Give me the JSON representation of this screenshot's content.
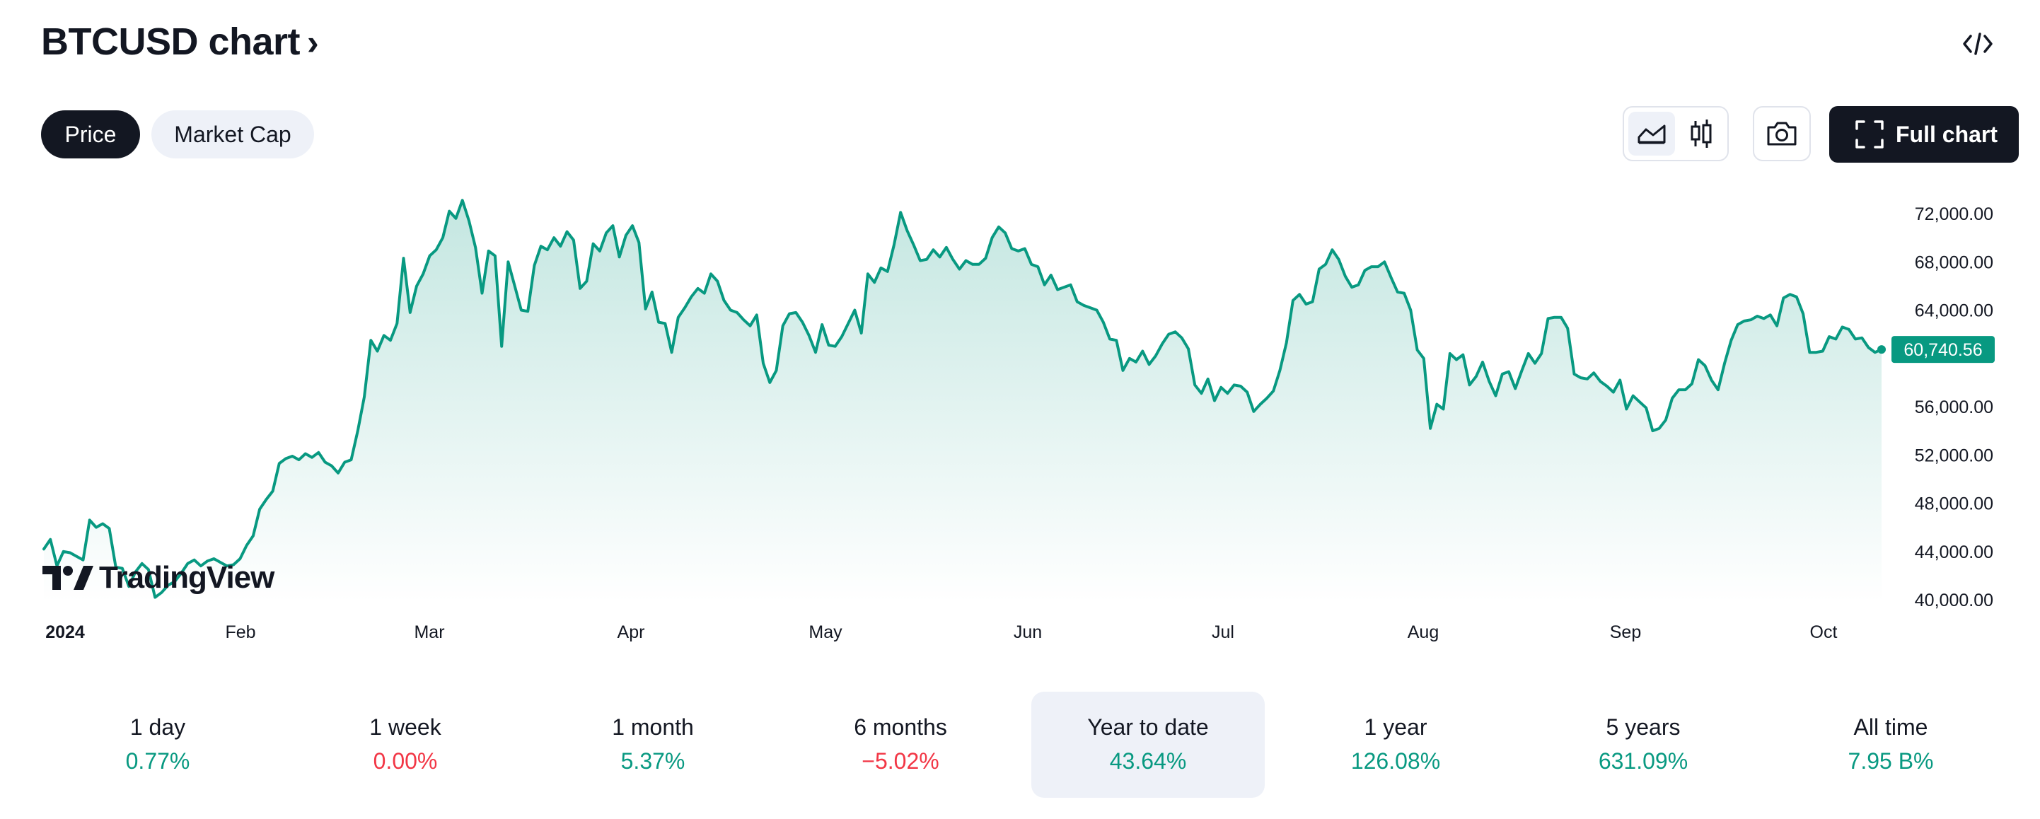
{
  "header": {
    "title": "BTCUSD chart",
    "title_chevron": "›",
    "embed_icon": "code-brackets-icon"
  },
  "tabs": [
    {
      "label": "Price",
      "active": true
    },
    {
      "label": "Market Cap",
      "active": false
    }
  ],
  "toolbar": {
    "line_icon": "area-chart-icon",
    "candle_icon": "candlestick-icon",
    "camera_icon": "camera-icon",
    "full_chart_label": "Full chart",
    "full_chart_icon": "fullscreen-icon"
  },
  "watermark": "TradingView",
  "colors": {
    "line": "#089981",
    "fill_top": "rgba(8,153,129,0.22)",
    "badge": "#089981",
    "positive": "#089981",
    "negative": "#f23645"
  },
  "chart_data": {
    "type": "area",
    "title": "",
    "xlabel": "",
    "ylabel": "",
    "x_ticks": [
      "2024",
      "Feb",
      "Mar",
      "Apr",
      "May",
      "Jun",
      "Jul",
      "Aug",
      "Sep",
      "Oct"
    ],
    "y_ticks": [
      "72,000.00",
      "68,000.00",
      "64,000.00",
      "56,000.00",
      "52,000.00",
      "48,000.00",
      "44,000.00",
      "40,000.00"
    ],
    "y_range": [
      40000,
      72000
    ],
    "last_value_label": "60,740.56",
    "last_value": 60740.56,
    "series": [
      {
        "values": [
          44200,
          45000,
          42800,
          44000,
          43900,
          43600,
          43300,
          46600,
          46000,
          46300,
          45900,
          42700,
          42600,
          41100,
          42300,
          43000,
          42500,
          40200,
          40600,
          41200,
          41500,
          42200,
          43000,
          43300,
          42800,
          43200,
          43400,
          43100,
          42800,
          42900,
          43400,
          44500,
          45300,
          47500,
          48300,
          49000,
          51300,
          51700,
          51900,
          51600,
          52100,
          51800,
          52200,
          51400,
          51100,
          50500,
          51400,
          51600,
          54000,
          56800,
          61500,
          60600,
          61900,
          61500,
          62900,
          68300,
          63800,
          66000,
          67000,
          68500,
          69000,
          70000,
          72200,
          71600,
          73100,
          71400,
          69200,
          65400,
          68900,
          68500,
          61000,
          68000,
          66000,
          64000,
          63900,
          67700,
          69300,
          69000,
          70000,
          69300,
          70500,
          69800,
          65800,
          66400,
          69500,
          68900,
          70400,
          71000,
          68400,
          70200,
          71000,
          69600,
          64100,
          65500,
          63000,
          62900,
          60500,
          63400,
          64200,
          65100,
          65800,
          65400,
          67000,
          66400,
          64800,
          64000,
          63800,
          63200,
          62700,
          63600,
          59600,
          58000,
          59000,
          62700,
          63700,
          63800,
          63000,
          61900,
          60500,
          62800,
          61100,
          61000,
          61800,
          62900,
          64000,
          62100,
          67000,
          66300,
          67500,
          67200,
          69400,
          72100,
          70600,
          69400,
          68100,
          68200,
          69000,
          68400,
          69200,
          68200,
          67400,
          68100,
          67800,
          67800,
          68300,
          70000,
          70900,
          70400,
          69100,
          68900,
          69100,
          67800,
          67600,
          66100,
          66900,
          65700,
          65900,
          66100,
          64700,
          64400,
          64200,
          64000,
          63000,
          61600,
          61500,
          59000,
          60000,
          59700,
          60600,
          59500,
          60200,
          61200,
          62000,
          62200,
          61700,
          60800,
          57800,
          57100,
          58300,
          56500,
          57600,
          57100,
          57800,
          57700,
          57200,
          55600,
          56200,
          56700,
          57300,
          59000,
          61300,
          64800,
          65300,
          64500,
          64700,
          67400,
          67800,
          69000,
          68200,
          66800,
          65900,
          66100,
          67300,
          67600,
          67600,
          68000,
          66700,
          65500,
          65400,
          64000,
          60700,
          60000,
          54200,
          56200,
          55800,
          60400,
          59900,
          60300,
          57800,
          58500,
          59700,
          58100,
          56900,
          58700,
          58900,
          57500,
          59000,
          60400,
          59600,
          60400,
          63300,
          63400,
          63400,
          62500,
          58700,
          58400,
          58300,
          58800,
          58100,
          57700,
          57200,
          58200,
          55800,
          56900,
          56400,
          55900,
          54000,
          54200,
          54900,
          56700,
          57400,
          57400,
          57900,
          59900,
          59400,
          58200,
          57400,
          59600,
          61500,
          62800,
          63100,
          63200,
          63500,
          63300,
          63600,
          62700,
          65000,
          65300,
          65100,
          63700,
          60500,
          60500,
          60600,
          61800,
          61600,
          62600,
          62400,
          61600,
          61700,
          60900,
          60500,
          60740.56
        ]
      }
    ]
  },
  "performance": [
    {
      "label": "1 day",
      "value": "0.77%",
      "sign": "positive",
      "active": false
    },
    {
      "label": "1 week",
      "value": "0.00%",
      "sign": "negative",
      "active": false
    },
    {
      "label": "1 month",
      "value": "5.37%",
      "sign": "positive",
      "active": false
    },
    {
      "label": "6 months",
      "value": "−5.02%",
      "sign": "negative",
      "active": false
    },
    {
      "label": "Year to date",
      "value": "43.64%",
      "sign": "positive",
      "active": true
    },
    {
      "label": "1 year",
      "value": "126.08%",
      "sign": "positive",
      "active": false
    },
    {
      "label": "5 years",
      "value": "631.09%",
      "sign": "positive",
      "active": false
    },
    {
      "label": "All time",
      "value": "7.95 B%",
      "sign": "positive",
      "active": false
    }
  ]
}
